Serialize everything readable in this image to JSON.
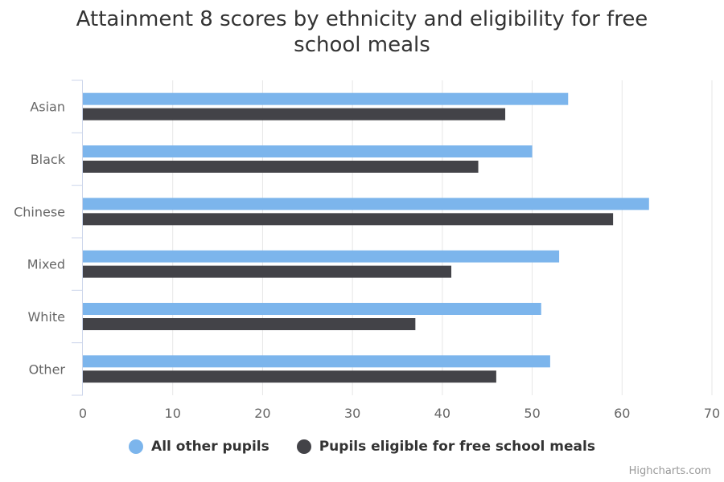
{
  "chart_data": {
    "type": "bar",
    "orientation": "horizontal",
    "title": "Attainment 8 scores by ethnicity and eligibility for free school meals",
    "categories": [
      "Asian",
      "Black",
      "Chinese",
      "Mixed",
      "White",
      "Other"
    ],
    "series": [
      {
        "name": "All other pupils",
        "color": "#7cb5ec",
        "values": [
          54,
          50,
          63,
          53,
          51,
          52
        ]
      },
      {
        "name": "Pupils eligible for free school meals",
        "color": "#434348",
        "values": [
          47,
          44,
          59,
          41,
          37,
          46
        ]
      }
    ],
    "xlim": [
      0,
      70
    ],
    "xticks": [
      0,
      10,
      20,
      30,
      40,
      50,
      60,
      70
    ],
    "grid": true,
    "legend_position": "bottom"
  },
  "credits": "Highcharts.com"
}
